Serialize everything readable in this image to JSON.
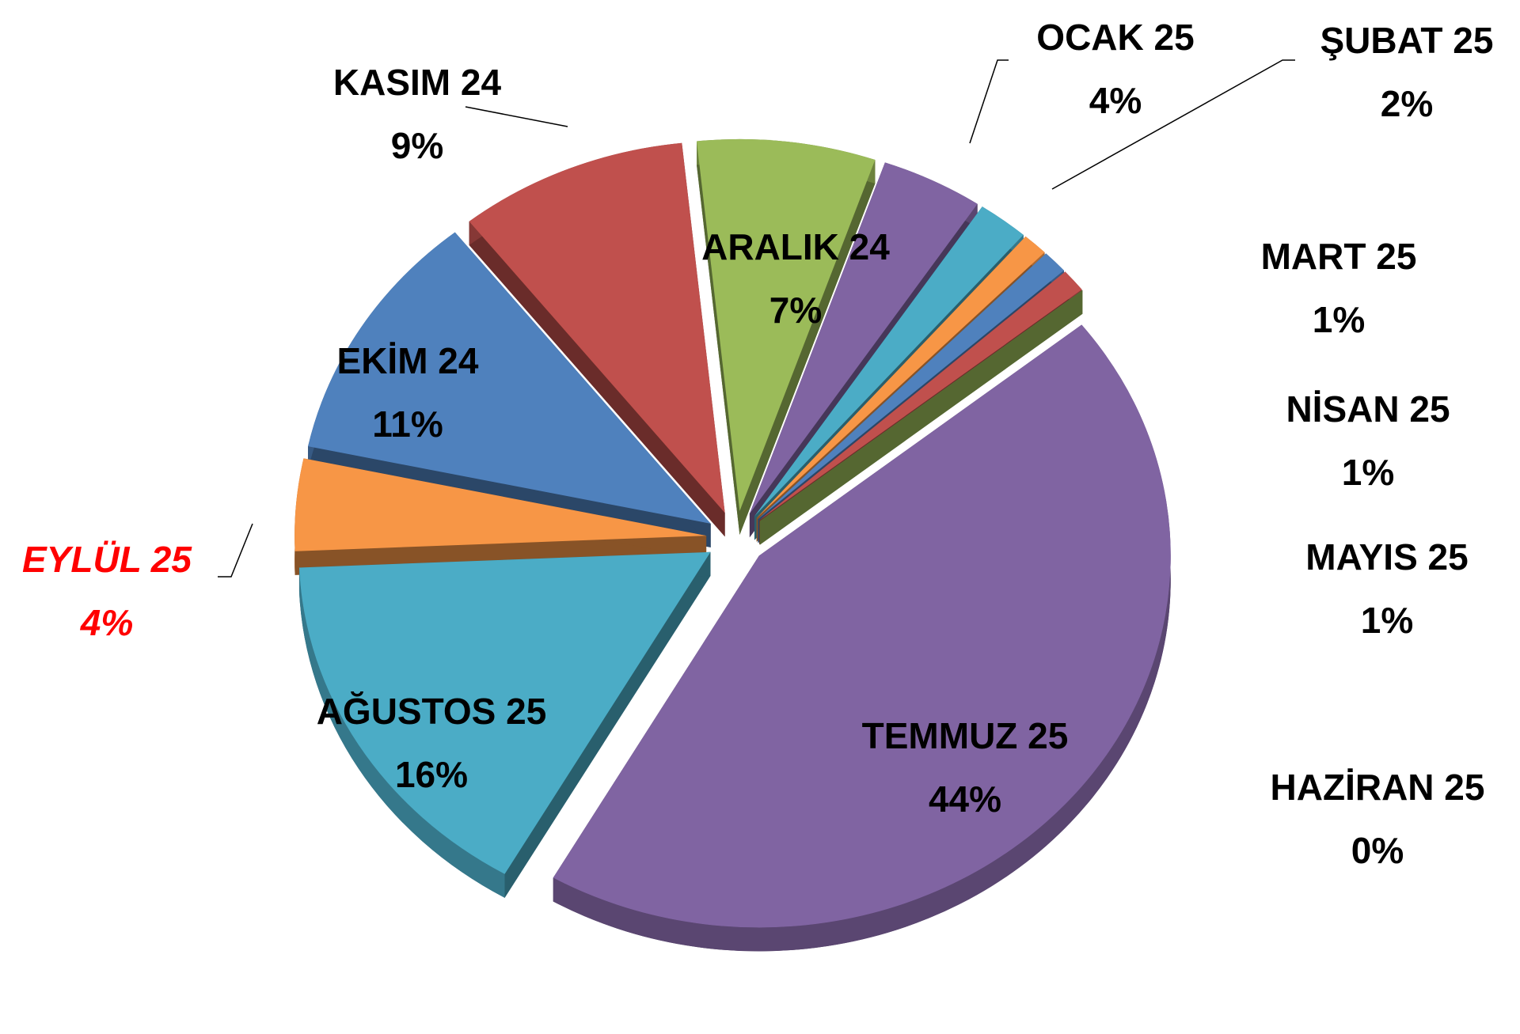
{
  "chart_data": {
    "type": "pie",
    "categories": [
      "EKİM 24",
      "KASIM 24",
      "ARALIK 24",
      "OCAK 25",
      "ŞUBAT 25",
      "MART 25",
      "NİSAN 25",
      "MAYIS 25",
      "HAZİRAN 25",
      "TEMMUZ 25",
      "AĞUSTOS 25",
      "EYLÜL 25"
    ],
    "values": [
      11,
      9,
      7,
      4,
      2,
      1,
      1,
      1,
      0,
      44,
      16,
      4
    ],
    "value_labels": [
      "11%",
      "9%",
      "7%",
      "4%",
      "2%",
      "1%",
      "1%",
      "1%",
      "0%",
      "44%",
      "16%",
      "4%"
    ],
    "colors": [
      "#4f81bd",
      "#c0504d",
      "#9bbb59",
      "#8064a2",
      "#4bacc6",
      "#f79646",
      "#4f81bd",
      "#c0504d",
      "#9bbb59",
      "#8064a2",
      "#4bacc6",
      "#f79646"
    ]
  }
}
